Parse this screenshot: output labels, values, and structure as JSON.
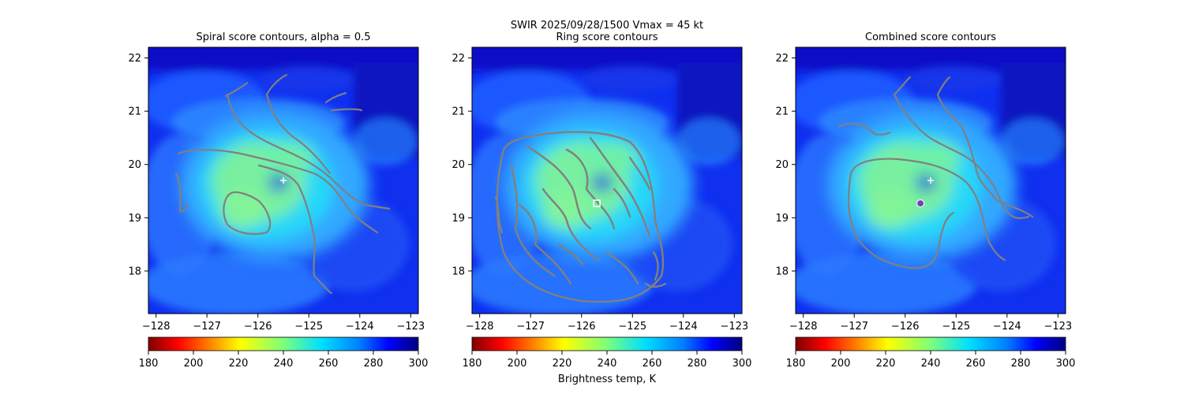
{
  "figure": {
    "suptitle_line1": "SWIR  2025/09/28/1500    Vmax = 45 kt",
    "colorbar_label": "Brightness temp, K"
  },
  "colors": {
    "contour": "#808080",
    "marker": "#ffffff",
    "combined_center": "#7a3fb8"
  },
  "colormap": {
    "name": "jet_r",
    "range": [
      180,
      300
    ],
    "ticks": [
      "180",
      "200",
      "220",
      "240",
      "260",
      "280",
      "300"
    ]
  },
  "chart_data": [
    {
      "type": "heatmap",
      "title": "Spiral score contours, alpha =  0.5",
      "xlabel": "",
      "ylabel": "",
      "xlim": [
        -128.15,
        -122.85
      ],
      "ylim": [
        17.2,
        22.2
      ],
      "xticks": [
        "−128",
        "−127",
        "−126",
        "−125",
        "−124",
        "−123"
      ],
      "xtick_values": [
        -128,
        -127,
        -126,
        -125,
        -124,
        -123
      ],
      "yticks": [
        "18",
        "19",
        "20",
        "21",
        "22"
      ],
      "ytick_values": [
        18,
        19,
        20,
        21,
        22
      ],
      "best_track_center": {
        "lon": -125.5,
        "lat": 19.7,
        "marker": "plus"
      }
    },
    {
      "type": "heatmap",
      "title": "Ring score contours",
      "xlabel": "",
      "ylabel": "",
      "xlim": [
        -128.15,
        -122.85
      ],
      "ylim": [
        17.2,
        22.2
      ],
      "xticks": [
        "−128",
        "−127",
        "−126",
        "−125",
        "−124",
        "−123"
      ],
      "xtick_values": [
        -128,
        -127,
        -126,
        -125,
        -124,
        -123
      ],
      "yticks": [
        "18",
        "19",
        "20",
        "21",
        "22"
      ],
      "ytick_values": [
        18,
        19,
        20,
        21,
        22
      ],
      "ring_center": {
        "lon": -125.7,
        "lat": 19.27,
        "marker": "square"
      }
    },
    {
      "type": "heatmap",
      "title": "Combined score contours",
      "xlabel": "",
      "ylabel": "",
      "xlim": [
        -128.15,
        -122.85
      ],
      "ylim": [
        17.2,
        22.2
      ],
      "xticks": [
        "−128",
        "−127",
        "−126",
        "−125",
        "−124",
        "−123"
      ],
      "xtick_values": [
        -128,
        -127,
        -126,
        -125,
        -124,
        -123
      ],
      "yticks": [
        "18",
        "19",
        "20",
        "21",
        "22"
      ],
      "ytick_values": [
        18,
        19,
        20,
        21,
        22
      ],
      "best_track_center": {
        "lon": -125.5,
        "lat": 19.7,
        "marker": "plus"
      },
      "combined_center": {
        "lon": -125.7,
        "lat": 19.27,
        "marker": "circle"
      }
    }
  ]
}
